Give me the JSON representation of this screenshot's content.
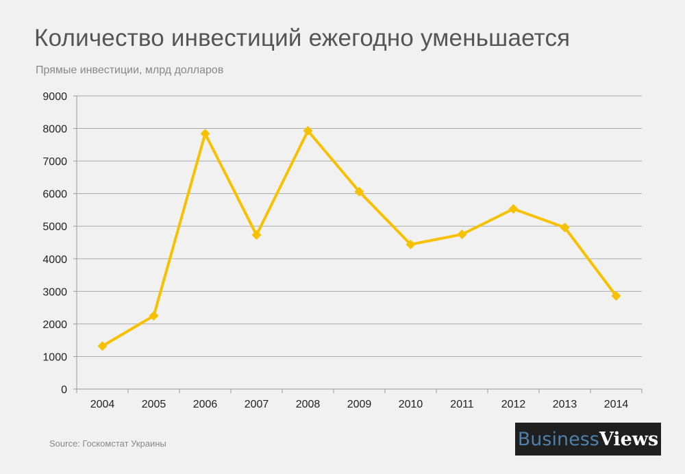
{
  "chart_data": {
    "type": "line",
    "title": "Количество инвестиций ежегодно уменьшается",
    "subtitle": "Прямые инвестиции, млрд долларов",
    "categories": [
      "2004",
      "2005",
      "2006",
      "2007",
      "2008",
      "2009",
      "2010",
      "2011",
      "2012",
      "2013",
      "2014"
    ],
    "series": [
      {
        "values": [
          1320,
          2250,
          7840,
          4730,
          7930,
          6060,
          4440,
          4750,
          5530,
          4960,
          2860
        ]
      }
    ],
    "ylim": [
      0,
      9000
    ],
    "yticks": [
      "0",
      "1000",
      "2000",
      "3000",
      "4000",
      "5000",
      "6000",
      "7000",
      "8000",
      "9000"
    ],
    "grid": true,
    "line_color": "#f7c100",
    "marker": "diamond"
  },
  "source": "Source: Госкомстат Украины",
  "logo": {
    "part1": "Business",
    "part2": "Views"
  }
}
